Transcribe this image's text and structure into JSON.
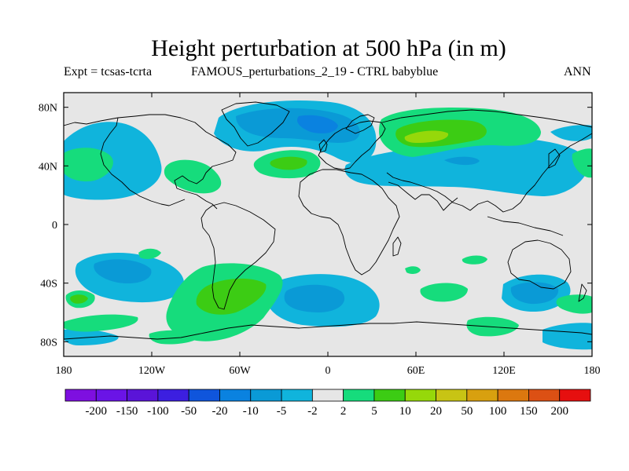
{
  "title": "Height perturbation at 500 hPa (in m)",
  "subtitle_left": "Expt = tcsas-tcrta",
  "subtitle_center": "FAMOUS_perturbations_2_19 - CTRL babyblue",
  "subtitle_right": "ANN",
  "map": {
    "ocean_color": "#e6e6e6",
    "lat_ticks": [
      {
        "value": 80,
        "label": "80N"
      },
      {
        "value": 40,
        "label": "40N"
      },
      {
        "value": 0,
        "label": "0"
      },
      {
        "value": -40,
        "label": "40S"
      },
      {
        "value": -80,
        "label": "80S"
      }
    ],
    "lon_ticks": [
      {
        "value": -180,
        "label": "180"
      },
      {
        "value": -120,
        "label": "120W"
      },
      {
        "value": -60,
        "label": "60W"
      },
      {
        "value": 0,
        "label": "0"
      },
      {
        "value": 60,
        "label": "60E"
      },
      {
        "value": 120,
        "label": "120E"
      },
      {
        "value": 180,
        "label": "180"
      }
    ]
  },
  "colorbar": {
    "colors": [
      "#7e0fe0",
      "#6a14e6",
      "#5a14d8",
      "#3c1fe0",
      "#0f55dc",
      "#0a82e0",
      "#0a9ad6",
      "#10b4dc",
      "#e6e6e6",
      "#16dc7c",
      "#3ccc14",
      "#96d80a",
      "#c8c414",
      "#d8a00f",
      "#dc780f",
      "#dc5014",
      "#e60f0f"
    ],
    "labels": [
      "-200",
      "-150",
      "-100",
      "-50",
      "-20",
      "-10",
      "-5",
      "-2",
      "2",
      "5",
      "10",
      "20",
      "50",
      "100",
      "150",
      "200"
    ]
  },
  "chart_data": {
    "type": "heatmap",
    "title": "Height perturbation at 500 hPa (in m)",
    "projection": "cylindrical equidistant",
    "xlim": [
      -180,
      180
    ],
    "ylim": [
      -90,
      90
    ],
    "levels": [
      -200,
      -150,
      -100,
      -50,
      -20,
      -10,
      -5,
      -2,
      2,
      5,
      10,
      20,
      50,
      100,
      150,
      200
    ],
    "level_colors": [
      "#7e0fe0",
      "#6a14e6",
      "#5a14d8",
      "#3c1fe0",
      "#0f55dc",
      "#0a82e0",
      "#0a9ad6",
      "#10b4dc",
      "#e6e6e6",
      "#16dc7c",
      "#3ccc14",
      "#96d80a",
      "#c8c414",
      "#d8a00f",
      "#dc780f",
      "#dc5014",
      "#e60f0f"
    ],
    "features": [
      {
        "name": "Arctic/North Atlantic low",
        "lon": [
          -70,
          10
        ],
        "lat": [
          55,
          90
        ],
        "band": "-5 to -2",
        "core_band": "-10 to -5"
      },
      {
        "name": "Eurasian high",
        "lon": [
          10,
          110
        ],
        "lat": [
          50,
          80
        ],
        "band": "2 to 5",
        "core_band": "10 to 20"
      },
      {
        "name": "North Atlantic high",
        "lon": [
          -50,
          0
        ],
        "lat": [
          30,
          50
        ],
        "band": "2 to 5",
        "core_band": "5 to 10"
      },
      {
        "name": "North Pacific negative band",
        "lon": [
          -180,
          -110
        ],
        "lat": [
          20,
          70
        ],
        "band": "-5 to -2"
      },
      {
        "name": "Central Asia negative band",
        "lon": [
          50,
          175
        ],
        "lat": [
          20,
          55
        ],
        "band": "-5 to -2"
      },
      {
        "name": "South American high",
        "lon": [
          -100,
          -30
        ],
        "lat": [
          -75,
          -25
        ],
        "band": "2 to 5",
        "core_band": "5 to 10"
      },
      {
        "name": "South Pacific low",
        "lon": [
          -175,
          -110
        ],
        "lat": [
          -65,
          -20
        ],
        "band": "-5 to -2",
        "core_band": "-10 to -5"
      },
      {
        "name": "South Atlantic low",
        "lon": [
          -35,
          25
        ],
        "lat": [
          -75,
          -35
        ],
        "band": "-5 to -2",
        "core_band": "-10 to -5"
      },
      {
        "name": "Australian-sector low",
        "lon": [
          110,
          175
        ],
        "lat": [
          -65,
          -30
        ],
        "band": "-5 to -2",
        "core_band": "-10 to -5"
      }
    ]
  }
}
